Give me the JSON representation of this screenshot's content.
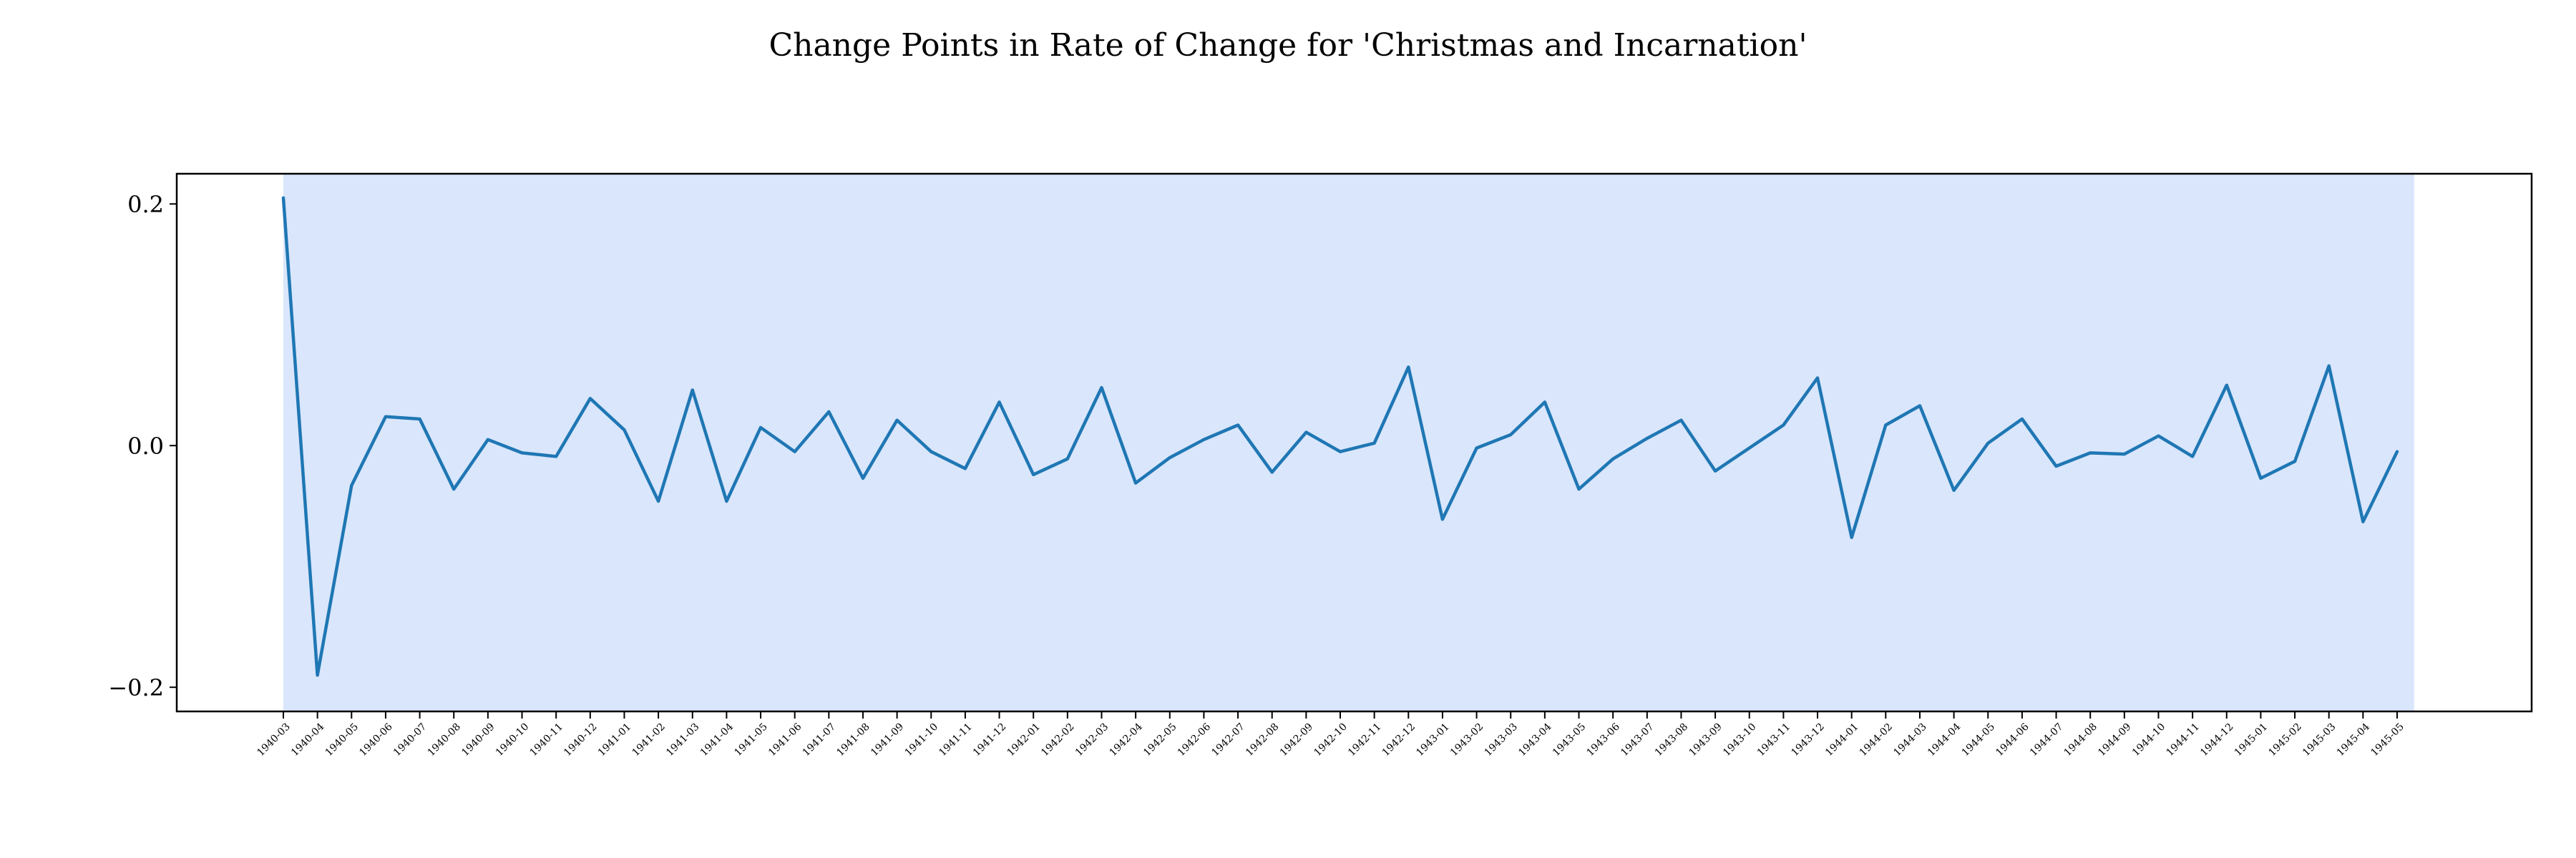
{
  "chart_data": {
    "type": "line",
    "title": "Change Points in Rate of Change for 'Christmas and Incarnation'",
    "xlabel": "",
    "ylabel": "",
    "ylim": [
      -0.22,
      0.225
    ],
    "yticks": [
      -0.2,
      0.0,
      0.2
    ],
    "ytick_labels": [
      "−0.2",
      "0.0",
      "0.2"
    ],
    "grid": false,
    "legend": "none",
    "line_color": "#1f77b4",
    "shade_color": "#dae6fb",
    "shaded_regions": [
      {
        "start": "1940-03",
        "end": "1945-05"
      }
    ],
    "x": [
      "1940-03",
      "1940-04",
      "1940-05",
      "1940-06",
      "1940-07",
      "1940-08",
      "1940-09",
      "1940-10",
      "1940-11",
      "1940-12",
      "1941-01",
      "1941-02",
      "1941-03",
      "1941-04",
      "1941-05",
      "1941-06",
      "1941-07",
      "1941-08",
      "1941-09",
      "1941-10",
      "1941-11",
      "1941-12",
      "1942-01",
      "1942-02",
      "1942-03",
      "1942-04",
      "1942-05",
      "1942-06",
      "1942-07",
      "1942-08",
      "1942-09",
      "1942-10",
      "1942-11",
      "1942-12",
      "1943-01",
      "1943-02",
      "1943-03",
      "1943-04",
      "1943-05",
      "1943-06",
      "1943-07",
      "1943-08",
      "1943-09",
      "1943-10",
      "1943-11",
      "1943-12",
      "1944-01",
      "1944-02",
      "1944-03",
      "1944-04",
      "1944-05",
      "1944-06",
      "1944-07",
      "1944-08",
      "1944-09",
      "1944-10",
      "1944-11",
      "1944-12",
      "1945-01",
      "1945-02",
      "1945-03",
      "1945-04",
      "1945-05"
    ],
    "series": [
      {
        "values": [
          0.205,
          -0.19,
          -0.033,
          0.024,
          0.022,
          -0.036,
          0.005,
          -0.006,
          -0.009,
          0.039,
          0.013,
          -0.046,
          0.046,
          -0.046,
          0.015,
          -0.005,
          0.028,
          -0.027,
          0.021,
          -0.005,
          -0.019,
          0.036,
          -0.024,
          -0.011,
          0.048,
          -0.031,
          -0.01,
          0.005,
          0.017,
          -0.022,
          0.011,
          -0.005,
          0.002,
          0.065,
          -0.061,
          -0.002,
          0.009,
          0.036,
          -0.036,
          -0.011,
          0.006,
          0.021,
          -0.021,
          -0.002,
          0.017,
          0.056,
          -0.076,
          0.017,
          0.033,
          -0.037,
          0.002,
          0.022,
          -0.017,
          -0.006,
          -0.007,
          0.008,
          -0.009,
          0.05,
          -0.027,
          -0.013,
          0.066,
          -0.063,
          -0.005
        ]
      }
    ]
  }
}
